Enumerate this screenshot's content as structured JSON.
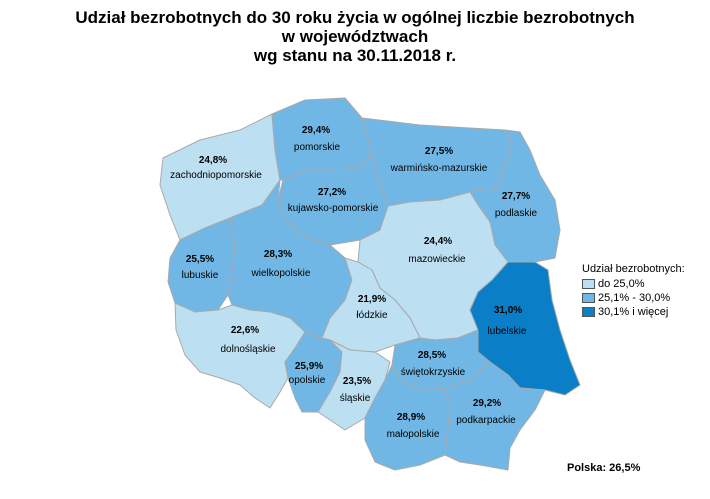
{
  "title": {
    "line1": "Udział bezrobotnych do 30 roku życia w ogólnej liczbie bezrobotnych",
    "line2": "w województwach",
    "line3": "wg stanu na 30.11.2018 r."
  },
  "colors": {
    "low": "#bddff2",
    "mid": "#71b7e5",
    "high": "#0a7ec6",
    "border": "#a9a9a9"
  },
  "legend": {
    "title": "Udział bezrobotnych:",
    "items": [
      {
        "label": "do 25,0%",
        "color": "#bddff2"
      },
      {
        "label": "25,1% - 30,0%",
        "color": "#71b7e5"
      },
      {
        "label": "30,1% i więcej",
        "color": "#0a7ec6"
      }
    ]
  },
  "national": "Polska: 26,5%",
  "regions": {
    "zachodniopomorskie": {
      "value": "24,8%",
      "name": "zachodniopomorskie",
      "class": "low"
    },
    "pomorskie": {
      "value": "29,4%",
      "name": "pomorskie",
      "class": "mid"
    },
    "warminsko": {
      "value": "27,5%",
      "name": "warmińsko-mazurskie",
      "class": "mid"
    },
    "podlaskie": {
      "value": "27,7%",
      "name": "podlaskie",
      "class": "mid"
    },
    "kujawsko": {
      "value": "27,2%",
      "name": "kujawsko-pomorskie",
      "class": "mid"
    },
    "lubuskie": {
      "value": "25,5%",
      "name": "lubuskie",
      "class": "mid"
    },
    "wielkopolskie": {
      "value": "28,3%",
      "name": "wielkopolskie",
      "class": "mid"
    },
    "mazowieckie": {
      "value": "24,4%",
      "name": "mazowieckie",
      "class": "low"
    },
    "lodzkie": {
      "value": "21,9%",
      "name": "łódzkie",
      "class": "low"
    },
    "lubelskie": {
      "value": "31,0%",
      "name": "lubelskie",
      "class": "high"
    },
    "dolnoslaskie": {
      "value": "22,6%",
      "name": "dolnośląskie",
      "class": "low"
    },
    "opolskie": {
      "value": "25,9%",
      "name": "opolskie",
      "class": "mid"
    },
    "slaskie": {
      "value": "23,5%",
      "name": "śląskie",
      "class": "low"
    },
    "swietokrzyskie": {
      "value": "28,5%",
      "name": "świętokrzyskie",
      "class": "mid"
    },
    "malopolskie": {
      "value": "28,9%",
      "name": "małopolskie",
      "class": "mid"
    },
    "podkarpackie": {
      "value": "29,2%",
      "name": "podkarpackie",
      "class": "mid"
    }
  }
}
